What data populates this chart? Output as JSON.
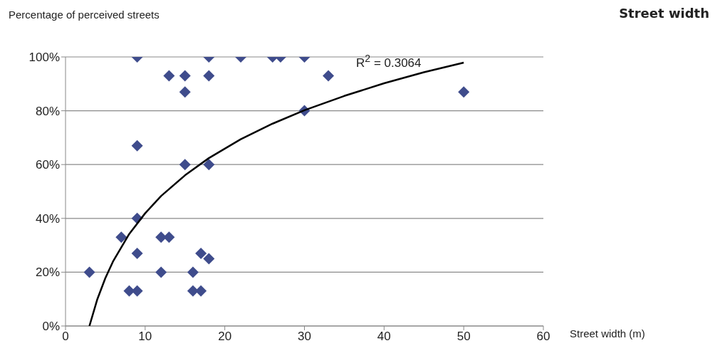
{
  "chart_data": {
    "type": "scatter",
    "title": "Street width",
    "ylabel": "Percentage of perceived streets",
    "xlabel": "Street width (m)",
    "annotations": [
      "R$^{2}$ = 0.3064"
    ],
    "xlim": [
      0,
      60
    ],
    "xticks": [
      0,
      10,
      20,
      30,
      40,
      50,
      60
    ],
    "ylim": [
      0,
      100
    ],
    "yticks": [
      {
        "value": 0,
        "label": "0%"
      },
      {
        "value": 20,
        "label": "20%"
      },
      {
        "value": 40,
        "label": "40%"
      },
      {
        "value": 60,
        "label": "60%"
      },
      {
        "value": 80,
        "label": "80%"
      },
      {
        "value": 100,
        "label": "100%"
      }
    ],
    "grid": "y",
    "series": [
      {
        "marker": "diamond",
        "color": "#3f4c8c",
        "x": [
          3,
          7,
          8,
          9,
          9,
          9,
          9,
          9,
          12,
          12,
          13,
          13,
          15,
          15,
          15,
          16,
          16,
          17,
          17,
          18,
          18,
          18,
          18,
          22,
          26,
          27,
          30,
          30,
          33,
          50
        ],
        "values": [
          20,
          33,
          13,
          13,
          27,
          40,
          67,
          100,
          20,
          33,
          33,
          93,
          93,
          87,
          60,
          20,
          13,
          13,
          27,
          25,
          60,
          93,
          100,
          100,
          100,
          100,
          100,
          80,
          93,
          87
        ]
      },
      {
        "type": "line",
        "marker": "none",
        "color": "#000000",
        "x": [
          3,
          4,
          5,
          6,
          8,
          10,
          12,
          15,
          18,
          22,
          26,
          30,
          35,
          40,
          45,
          50
        ],
        "values": [
          0,
          10.0,
          17.8,
          24.2,
          34.2,
          41.9,
          48.3,
          56.0,
          62.4,
          69.4,
          75.2,
          80.2,
          85.5,
          90.2,
          94.3,
          97.9
        ]
      }
    ]
  }
}
